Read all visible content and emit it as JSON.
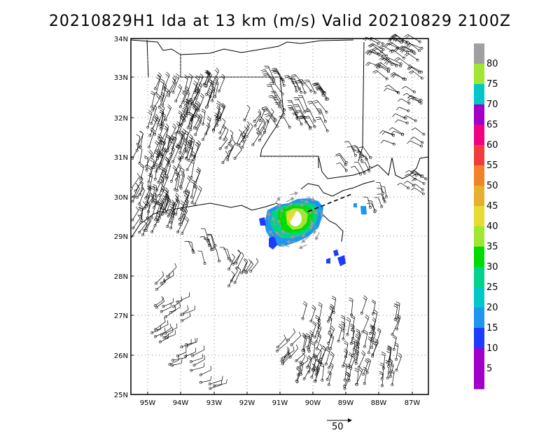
{
  "title": "20210829H1 Ida at 13 km (m/s) Valid 20210829 2100Z",
  "map": {
    "lon_labels": [
      "95W",
      "94W",
      "93W",
      "92W",
      "91W",
      "90W",
      "89W",
      "88W",
      "87W"
    ],
    "lat_labels": [
      "34N",
      "33N",
      "32N",
      "31N",
      "30N",
      "29N",
      "28N",
      "27N",
      "26N",
      "25N"
    ]
  },
  "colorbar": {
    "labels": [
      "80",
      "75",
      "70",
      "65",
      "60",
      "55",
      "50",
      "45",
      "40",
      "35",
      "30",
      "25",
      "20",
      "15",
      "10",
      "5"
    ],
    "colors": [
      "#a0a0a0",
      "#a0e632",
      "#00c8c8",
      "#a000c8",
      "#f00082",
      "#f03c3c",
      "#f08228",
      "#e6af2d",
      "#e6dc32",
      "#a0e632",
      "#00dc00",
      "#00d28c",
      "#00c8c8",
      "#1e96f0",
      "#1e3cff",
      "#a000c8",
      "#a000c8"
    ]
  },
  "reference_vector": {
    "label": "50"
  }
}
